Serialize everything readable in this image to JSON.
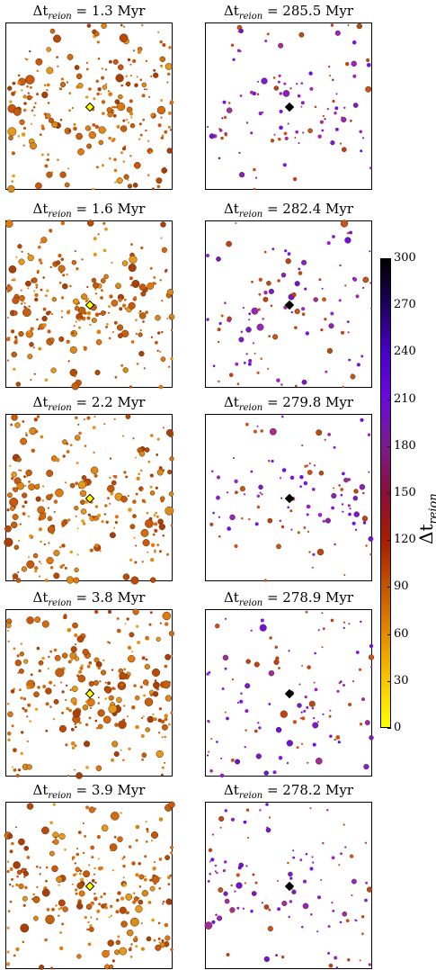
{
  "title_prefix": "Δt",
  "title_subscript": "reion",
  "title_unit": "Myr",
  "colorbar": {
    "label_main": "Δt",
    "label_sub": "reion",
    "min": 0,
    "max": 300,
    "ticks": [
      "0",
      "30",
      "60",
      "90",
      "120",
      "150",
      "180",
      "210",
      "240",
      "270",
      "300"
    ],
    "colormap": [
      "#ffff00",
      "#f7c600",
      "#e38b00",
      "#c45500",
      "#a31e00",
      "#8a0d3a",
      "#7a1b8c",
      "#6b09d8",
      "#4a00c8",
      "#1f0060",
      "#000000"
    ]
  },
  "chart_data": [
    {
      "type": "scatter",
      "row": 1,
      "col": 1,
      "delta_t_reion_myr": "1.3",
      "center_marker_color": "#ffff00"
    },
    {
      "type": "scatter",
      "row": 1,
      "col": 2,
      "delta_t_reion_myr": "285.5",
      "center_marker_color": "#000000"
    },
    {
      "type": "scatter",
      "row": 2,
      "col": 1,
      "delta_t_reion_myr": "1.6",
      "center_marker_color": "#ffff00"
    },
    {
      "type": "scatter",
      "row": 2,
      "col": 2,
      "delta_t_reion_myr": "282.4",
      "center_marker_color": "#000000"
    },
    {
      "type": "scatter",
      "row": 3,
      "col": 1,
      "delta_t_reion_myr": "2.2",
      "center_marker_color": "#ffff00"
    },
    {
      "type": "scatter",
      "row": 3,
      "col": 2,
      "delta_t_reion_myr": "279.8",
      "center_marker_color": "#000000"
    },
    {
      "type": "scatter",
      "row": 4,
      "col": 1,
      "delta_t_reion_myr": "3.8",
      "center_marker_color": "#ffff00"
    },
    {
      "type": "scatter",
      "row": 4,
      "col": 2,
      "delta_t_reion_myr": "278.9",
      "center_marker_color": "#000000"
    },
    {
      "type": "scatter",
      "row": 5,
      "col": 1,
      "delta_t_reion_myr": "3.9",
      "center_marker_color": "#ffff00"
    },
    {
      "type": "scatter",
      "row": 5,
      "col": 2,
      "delta_t_reion_myr": "278.2",
      "center_marker_color": "#000000"
    }
  ]
}
